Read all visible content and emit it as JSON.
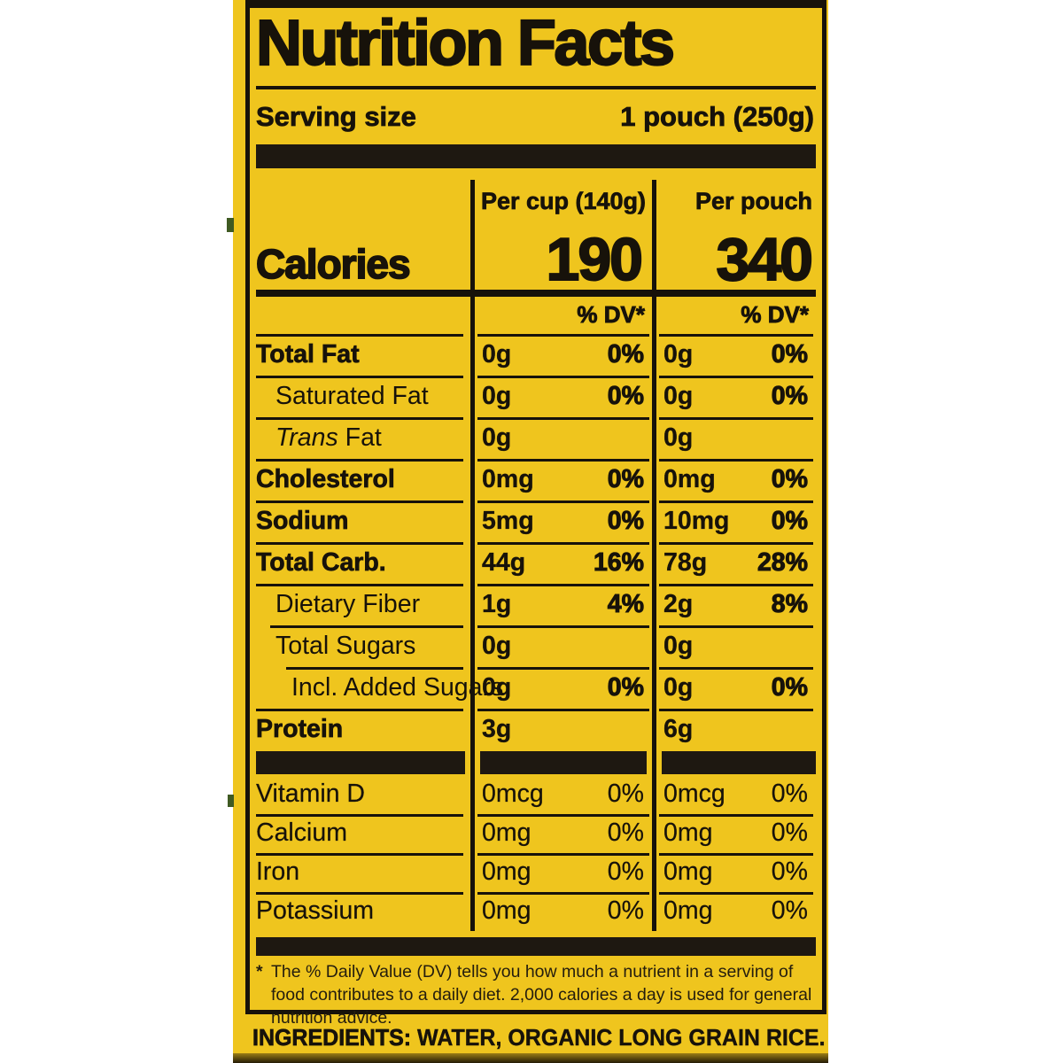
{
  "colors": {
    "panel_yellow": "#EFC51E",
    "ink_black": "#17120A",
    "bar_black": "#1E1811"
  },
  "nutrition_facts": {
    "title": "Nutrition Facts",
    "serving_size_label": "Serving size",
    "serving_size_value": "1 pouch (250g)",
    "column_headers": [
      "Per cup (140g)",
      "Per pouch"
    ],
    "calories_label": "Calories",
    "calories_per_cup": "190",
    "calories_per_pouch": "340",
    "daily_value_header": "% DV*",
    "nutrient_rows": [
      {
        "name": "Total Fat",
        "bold": true,
        "indent": 0,
        "per_cup": {
          "amount": "0g",
          "dv": "0%"
        },
        "per_pouch": {
          "amount": "0g",
          "dv": "0%"
        }
      },
      {
        "name": "Saturated Fat",
        "bold": false,
        "indent": 1,
        "per_cup": {
          "amount": "0g",
          "dv": "0%"
        },
        "per_pouch": {
          "amount": "0g",
          "dv": "0%"
        }
      },
      {
        "name": " Fat",
        "italic_prefix": "Trans",
        "bold": false,
        "indent": 1,
        "per_cup": {
          "amount": "0g",
          "dv": ""
        },
        "per_pouch": {
          "amount": "0g",
          "dv": ""
        }
      },
      {
        "name": "Cholesterol",
        "bold": true,
        "indent": 0,
        "per_cup": {
          "amount": "0mg",
          "dv": "0%"
        },
        "per_pouch": {
          "amount": "0mg",
          "dv": "0%"
        }
      },
      {
        "name": "Sodium",
        "bold": true,
        "indent": 0,
        "per_cup": {
          "amount": "5mg",
          "dv": "0%"
        },
        "per_pouch": {
          "amount": "10mg",
          "dv": "0%"
        }
      },
      {
        "name": "Total Carb.",
        "bold": true,
        "indent": 0,
        "per_cup": {
          "amount": "44g",
          "dv": "16%"
        },
        "per_pouch": {
          "amount": "78g",
          "dv": "28%"
        }
      },
      {
        "name": "Dietary Fiber",
        "bold": false,
        "indent": 1,
        "per_cup": {
          "amount": "1g",
          "dv": "4%"
        },
        "per_pouch": {
          "amount": "2g",
          "dv": "8%"
        }
      },
      {
        "name": "Total Sugars",
        "bold": false,
        "indent": 1,
        "per_cup": {
          "amount": "0g",
          "dv": ""
        },
        "per_pouch": {
          "amount": "0g",
          "dv": ""
        }
      },
      {
        "name": "Incl. Added Sugars",
        "bold": false,
        "indent": 2,
        "per_cup": {
          "amount": "0g",
          "dv": "0%"
        },
        "per_pouch": {
          "amount": "0g",
          "dv": "0%"
        }
      },
      {
        "name": "Protein",
        "bold": true,
        "indent": 0,
        "per_cup": {
          "amount": "3g",
          "dv": ""
        },
        "per_pouch": {
          "amount": "6g",
          "dv": ""
        }
      }
    ],
    "micronutrient_rows": [
      {
        "name": "Vitamin D",
        "per_cup": {
          "amount": "0mcg",
          "dv": "0%"
        },
        "per_pouch": {
          "amount": "0mcg",
          "dv": "0%"
        }
      },
      {
        "name": "Calcium",
        "per_cup": {
          "amount": "0mg",
          "dv": "0%"
        },
        "per_pouch": {
          "amount": "0mg",
          "dv": "0%"
        }
      },
      {
        "name": "Iron",
        "per_cup": {
          "amount": "0mg",
          "dv": "0%"
        },
        "per_pouch": {
          "amount": "0mg",
          "dv": "0%"
        }
      },
      {
        "name": "Potassium",
        "per_cup": {
          "amount": "0mg",
          "dv": "0%"
        },
        "per_pouch": {
          "amount": "0mg",
          "dv": "0%"
        }
      }
    ],
    "footnote_marker": "*",
    "footnote": "The % Daily Value (DV) tells you how much a nutrient in a serving of food contributes to a daily diet. 2,000 calories a day is used for general nutrition advice."
  },
  "ingredients": {
    "label": "INGREDIENTS:",
    "text": "WATER, ORGANIC LONG GRAIN RICE."
  }
}
